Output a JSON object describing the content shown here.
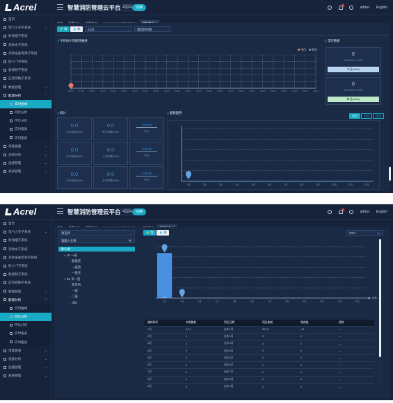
{
  "header": {
    "app_title": "智慧消防管理云平台",
    "org_code": "4324",
    "org_toggle": "切换",
    "admin": "admin",
    "language": "English",
    "logo": "Acrel"
  },
  "sidebar": {
    "items": [
      {
        "label": "首页",
        "icon": "home-icon",
        "chevron": ""
      },
      {
        "label": "电气火灾子系统",
        "icon": "bolt-icon",
        "chevron": "⌄"
      },
      {
        "label": "防排烟子系统",
        "icon": "fan-icon",
        "chevron": ""
      },
      {
        "label": "消防水子系统",
        "icon": "water-icon",
        "chevron": ""
      },
      {
        "label": "消防设备电源子系统",
        "icon": "power-icon",
        "chevron": ""
      },
      {
        "label": "防火门子系统",
        "icon": "door-icon",
        "chevron": ""
      },
      {
        "label": "极视频子系统",
        "icon": "video-icon",
        "chevron": ""
      },
      {
        "label": "应急疏散子系统",
        "icon": "exit-icon",
        "chevron": ""
      },
      {
        "label": "数据管理",
        "icon": "data-icon",
        "chevron": "⌄"
      },
      {
        "label": "能源分析",
        "icon": "chart-icon",
        "chevron": "⌃"
      },
      {
        "label": "实时曲线",
        "icon": "curve-icon",
        "chevron": ""
      },
      {
        "label": "同比分析",
        "icon": "compare-icon",
        "chevron": ""
      },
      {
        "label": "环比分析",
        "icon": "trend-icon",
        "chevron": ""
      },
      {
        "label": "实时报表",
        "icon": "report-icon",
        "chevron": ""
      },
      {
        "label": "实时图表",
        "icon": "graph-icon",
        "chevron": ""
      },
      {
        "label": "电能质量",
        "icon": "quality-icon",
        "chevron": "⌄"
      },
      {
        "label": "设备分析",
        "icon": "device-icon",
        "chevron": "⌄"
      },
      {
        "label": "运维管理",
        "icon": "maint-icon",
        "chevron": "⌄"
      },
      {
        "label": "系统管理",
        "icon": "system-icon",
        "chevron": "⌄"
      }
    ]
  },
  "shot1": {
    "tabs": [
      "首页",
      "报警分析",
      "报警查询",
      "www.zecnet.net/hostname",
      "能耗概况 ×"
    ],
    "active_tab": 4,
    "btn_elec": "电",
    "btn_water": "水",
    "site_select": "4324",
    "date_select": "请选择日期",
    "chart_title": "今日每小时能耗曲线",
    "legend_today": "今日",
    "legend_yesterday": "昨日",
    "right_title": "实时数据",
    "card1_value": "0",
    "card1_time": "2021-06-01 00:00",
    "card1_btn": "今日(kWh)",
    "card2_value": "0",
    "card2_time": "2021-06-01 00:00",
    "card2_btn": "昨日(kWh)",
    "stats_title": "统计",
    "stats": [
      {
        "value": "0.0",
        "label": "今日用电(kWh)"
      },
      {
        "value": "0.0",
        "label": "昨日同期(kWh)"
      },
      {
        "value": "0.0kwh",
        "label": "环比"
      },
      {
        "value": "0.0",
        "label": "本月用电(kWh)"
      },
      {
        "value": "0.0",
        "label": "上月同期(kWh)"
      },
      {
        "value": "0.0kwh",
        "label": "环比"
      },
      {
        "value": "0.0",
        "label": "今年用电(kWh)"
      },
      {
        "value": "0.0",
        "label": "去年同期(kWh)"
      },
      {
        "value": "0.0kwh",
        "label": "环比"
      }
    ],
    "trend_title": "能耗趋势",
    "seg": [
      "当日",
      "当月",
      "当年"
    ]
  },
  "shot2": {
    "tabs": [
      "首页",
      "报警分析",
      "报警查询",
      "www.zecnet.net/hostname",
      "能耗概况",
      "同比分析 ×"
    ],
    "active_tab": 5,
    "tree_select": "请选择",
    "tree_search": "请输入名称",
    "tree": [
      {
        "label": "默认楼",
        "level": 0,
        "selected": true
      },
      {
        "label": "1F·一层",
        "level": 1,
        "selected": false
      },
      {
        "label": "配电室",
        "level": 2,
        "selected": false
      },
      {
        "label": "一层西",
        "level": 2,
        "selected": false
      },
      {
        "label": "一层东",
        "level": 2,
        "selected": false
      },
      {
        "label": "B1·负一层",
        "level": 1,
        "selected": false
      },
      {
        "label": "新风机",
        "level": 2,
        "selected": false
      },
      {
        "label": "一层",
        "level": 2,
        "selected": false
      },
      {
        "label": "二层",
        "level": 2,
        "selected": false
      },
      {
        "label": "ddd",
        "level": 2,
        "selected": false
      }
    ],
    "btn_elec": "电",
    "btn_water": "水",
    "year_select": "2021",
    "table_headers": [
      "能耗时间",
      "本期能耗",
      "同比日期",
      "同比能耗",
      "增减量",
      "趋势"
    ],
    "rows": [
      [
        "1月",
        "0.21",
        "去年1月",
        "35.02",
        "-34",
        "—"
      ],
      [
        "2月",
        "0",
        "去年2月",
        "0",
        "0",
        "—"
      ],
      [
        "3月",
        "0",
        "去年3月",
        "0",
        "0",
        "—"
      ],
      [
        "4月",
        "0",
        "去年4月",
        "0",
        "0",
        "—"
      ],
      [
        "5月",
        "0",
        "去年5月",
        "0",
        "0",
        "—"
      ],
      [
        "6月",
        "0",
        "去年6月",
        "0",
        "0",
        "—"
      ],
      [
        "7月",
        "0",
        "去年7月",
        "0",
        "0",
        "—"
      ],
      [
        "8月",
        "0",
        "去年8月",
        "0",
        "0",
        "—"
      ],
      [
        "9月",
        "0",
        "去年9月",
        "0",
        "0",
        "—"
      ]
    ]
  },
  "colors": {
    "accent": "#18a9c4",
    "bg": "#16233a",
    "panel": "#1a2a44",
    "today": "#f08a6f",
    "yesterday": "#66a3e0",
    "bar": "#4a90e2",
    "marker": "#e8796c"
  },
  "chart_data": [
    {
      "type": "line",
      "title": "今日每小时能耗曲线",
      "series": [
        {
          "name": "今日",
          "values": [
            0,
            0,
            0,
            0,
            0,
            0,
            0,
            0,
            0,
            0,
            0,
            0,
            0,
            0,
            0,
            0,
            0,
            0,
            0,
            0,
            0,
            0,
            0,
            0
          ]
        },
        {
          "name": "昨日",
          "values": [
            0,
            0,
            0,
            0,
            0,
            0,
            0,
            0,
            0,
            0,
            0,
            0,
            0,
            0,
            0,
            0,
            0,
            0,
            0,
            0,
            0,
            0,
            0,
            0
          ]
        }
      ],
      "x": [
        "00:00",
        "01:00",
        "02:00",
        "03:00",
        "04:00",
        "05:00",
        "06:00",
        "07:00",
        "08:00",
        "09:00",
        "10:00",
        "11:00",
        "12:00",
        "13:00",
        "14:00",
        "15:00",
        "16:00",
        "17:00",
        "18:00",
        "19:00",
        "20:00",
        "21:00",
        "22:00",
        "23:00"
      ],
      "legend": "top-right",
      "grid": true
    },
    {
      "type": "line",
      "title": "能耗趋势",
      "categories": [
        "1月",
        "2月",
        "3月",
        "4月",
        "5月",
        "6月",
        "7月",
        "8月",
        "9月",
        "10月",
        "11月",
        "12月"
      ],
      "values": [
        0,
        0,
        0,
        0,
        0,
        0,
        0,
        0,
        0,
        0,
        0,
        0
      ],
      "grid": true
    },
    {
      "type": "bar",
      "categories": [
        "1月",
        "2月",
        "3月",
        "4月",
        "5月",
        "6月",
        "7月",
        "8月",
        "9月",
        "10月",
        "11月",
        "12月"
      ],
      "series": [
        {
          "name": "",
          "values": [
            0.21,
            0,
            0,
            0,
            0,
            0,
            0,
            0,
            0,
            0,
            0,
            0
          ]
        },
        {
          "name": "",
          "values": [
            35.02,
            0,
            0,
            0,
            0,
            0,
            0,
            0,
            0,
            0,
            0,
            0
          ]
        }
      ],
      "xlabel": "",
      "ylabel": "",
      "x_unit": "月份",
      "grid": true
    }
  ]
}
